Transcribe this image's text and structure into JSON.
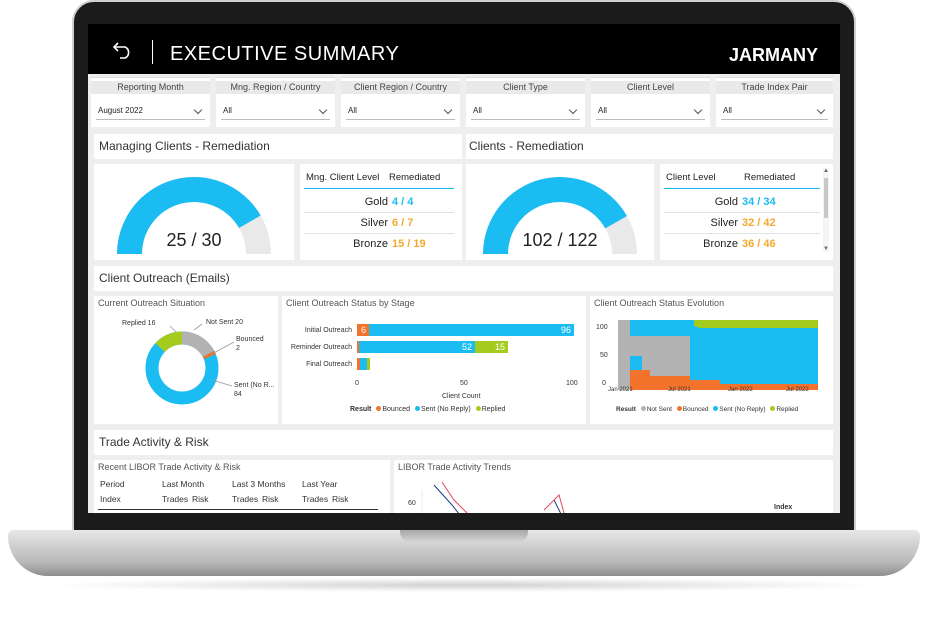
{
  "header": {
    "title": "EXECUTIVE SUMMARY",
    "brand": "JARMANY"
  },
  "filters": [
    {
      "label": "Reporting Month",
      "value": "August 2022"
    },
    {
      "label": "Mng. Region / Country",
      "value": "All"
    },
    {
      "label": "Client Region / Country",
      "value": "All"
    },
    {
      "label": "Client Type",
      "value": "All"
    },
    {
      "label": "Client Level",
      "value": "All"
    },
    {
      "label": "Trade Index Pair",
      "value": "All"
    }
  ],
  "managing": {
    "title": "Managing Clients - Remediation",
    "gauge_value": "25 / 30",
    "gauge_fraction": 0.8333,
    "col1": "Mng. Client Level",
    "col2": "Remediated",
    "rows": [
      {
        "level": "Gold",
        "value": "4 / 4"
      },
      {
        "level": "Silver",
        "value": "6 / 7"
      },
      {
        "level": "Bronze",
        "value": "15 / 19"
      }
    ]
  },
  "clients": {
    "title": "Clients - Remediation",
    "gauge_value": "102 / 122",
    "gauge_fraction": 0.836,
    "col1": "Client Level",
    "col2": "Remediated",
    "rows": [
      {
        "level": "Gold",
        "value": "34 / 34"
      },
      {
        "level": "Silver",
        "value": "32 / 42"
      },
      {
        "level": "Bronze",
        "value": "36 / 46"
      }
    ]
  },
  "outreach": {
    "section_title": "Client Outreach (Emails)",
    "situation": {
      "title": "Current Outreach Situation",
      "labels": {
        "replied": "Replied 16",
        "not_sent": "Not Sent 20",
        "bounced": "Bounced",
        "bounced_val": "2",
        "sent": "Sent (No R...",
        "sent_val": "84"
      }
    },
    "stage": {
      "title": "Client Outreach Status by Stage",
      "stages": [
        "Initial Outreach",
        "Reminder Outreach",
        "Final Outreach"
      ],
      "bounced_label": "6",
      "sent_label": "96",
      "sent2_label": "52",
      "replied2_label": "15",
      "x_ticks": [
        "0",
        "50",
        "100"
      ],
      "xlabel": "Client Count",
      "legend_title": "Result",
      "legend": [
        "Bounced",
        "Sent (No Reply)",
        "Replied"
      ]
    },
    "evolution": {
      "title": "Client Outreach Status Evolution",
      "y_ticks": [
        "100",
        "50",
        "0"
      ],
      "x_ticks": [
        "Jan 2021",
        "Jul 2021",
        "Jan 2022",
        "Jul 2022"
      ],
      "legend_title": "Result",
      "legend": [
        "Not Sent",
        "Bounced",
        "Sent (No Reply)",
        "Replied"
      ]
    }
  },
  "trade": {
    "section_title": "Trade Activity & Risk",
    "recent": {
      "title": "Recent LIBOR Trade Activity & Risk",
      "period": "Period",
      "last_month": "Last Month",
      "last_3": "Last 3 Months",
      "last_year": "Last Year",
      "index": "Index",
      "trades": "Trades",
      "risk": "Risk"
    },
    "trends": {
      "title": "LIBOR Trade Activity Trends",
      "y_tick": "60",
      "legend_title": "Index"
    }
  },
  "colors": {
    "cyan": "#1bbcf2",
    "orange": "#f4a92e",
    "bounced": "#f3722c",
    "replied": "#a4cc1f",
    "gray": "#b3b3b3"
  }
}
